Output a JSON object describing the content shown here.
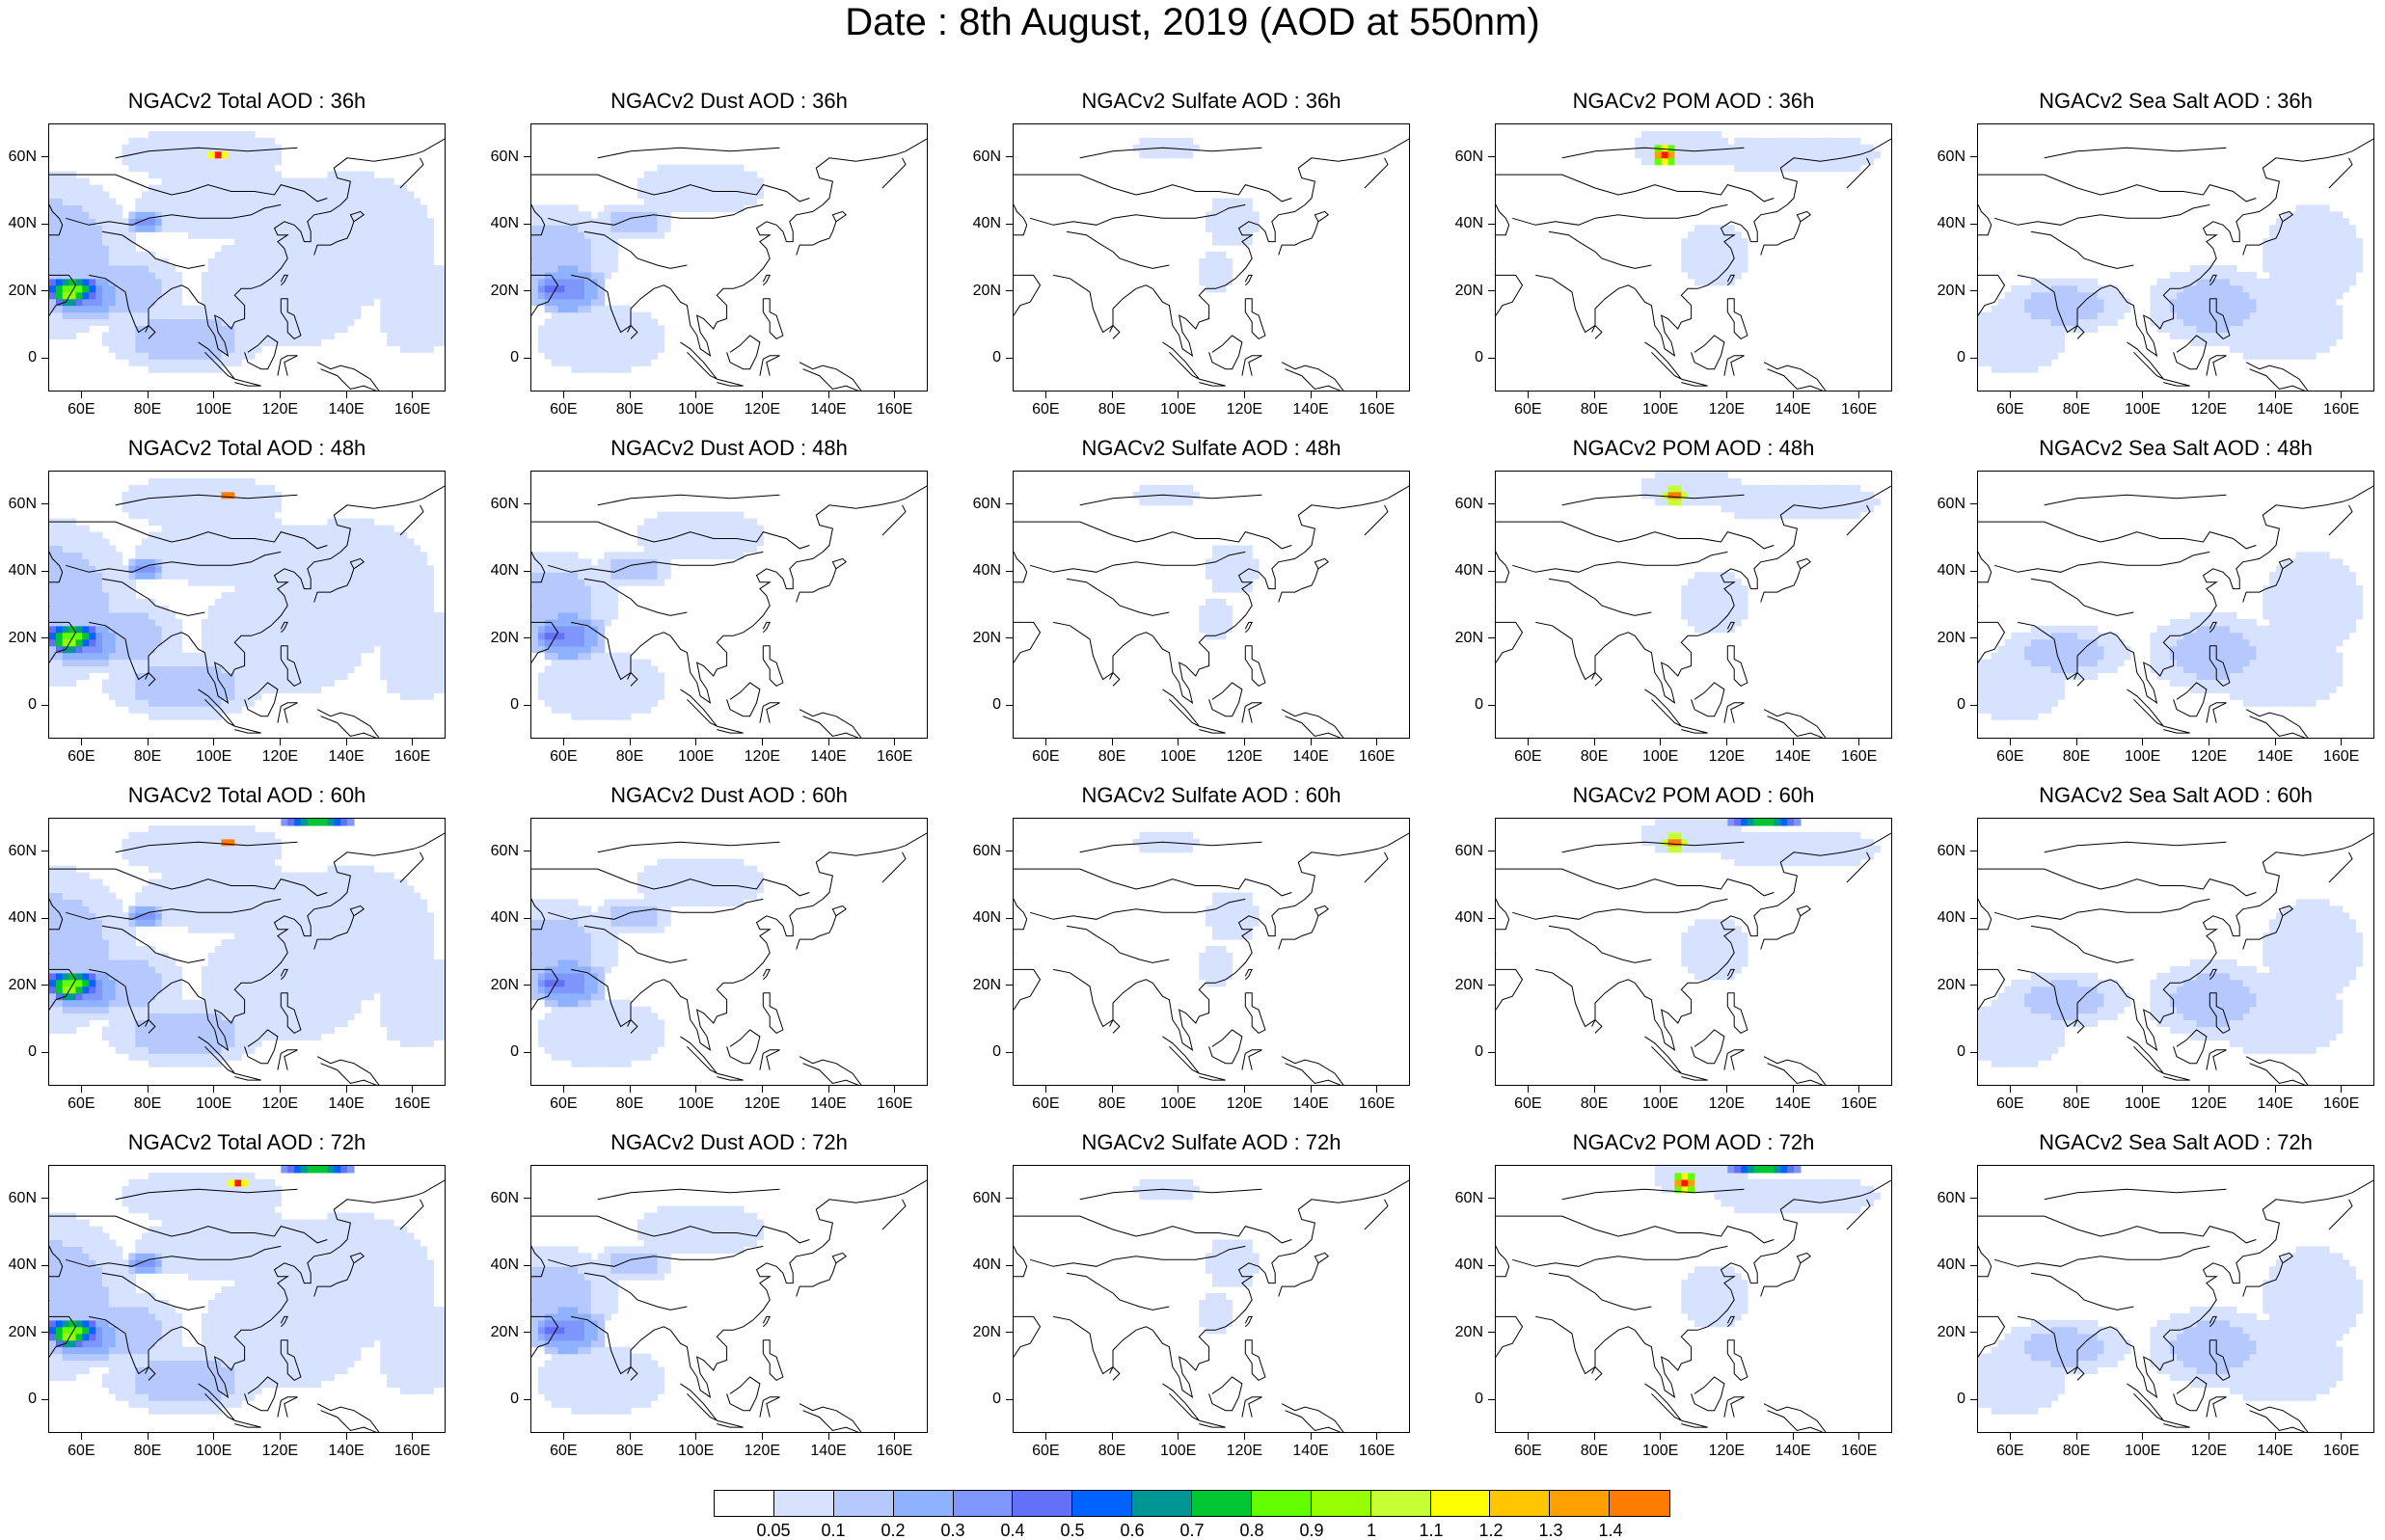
{
  "title": "Date : 8th August, 2019 (AOD at 550nm)",
  "panels": [
    {
      "id": "total-36",
      "title": "NGACv2 Total AOD : 36h",
      "species": "total",
      "hour": 36
    },
    {
      "id": "dust-36",
      "title": "NGACv2 Dust AOD : 36h",
      "species": "dust",
      "hour": 36
    },
    {
      "id": "sulfate-36",
      "title": "NGACv2 Sulfate AOD : 36h",
      "species": "sulfate",
      "hour": 36
    },
    {
      "id": "pom-36",
      "title": "NGACv2 POM AOD : 36h",
      "species": "pom",
      "hour": 36
    },
    {
      "id": "seasalt-36",
      "title": "NGACv2 Sea Salt AOD : 36h",
      "species": "seasalt",
      "hour": 36
    },
    {
      "id": "total-48",
      "title": "NGACv2 Total AOD : 48h",
      "species": "total",
      "hour": 48
    },
    {
      "id": "dust-48",
      "title": "NGACv2 Dust AOD : 48h",
      "species": "dust",
      "hour": 48
    },
    {
      "id": "sulfate-48",
      "title": "NGACv2 Sulfate AOD : 48h",
      "species": "sulfate",
      "hour": 48
    },
    {
      "id": "pom-48",
      "title": "NGACv2 POM AOD : 48h",
      "species": "pom",
      "hour": 48
    },
    {
      "id": "seasalt-48",
      "title": "NGACv2 Sea Salt AOD : 48h",
      "species": "seasalt",
      "hour": 48
    },
    {
      "id": "total-60",
      "title": "NGACv2 Total AOD : 60h",
      "species": "total",
      "hour": 60
    },
    {
      "id": "dust-60",
      "title": "NGACv2 Dust AOD : 60h",
      "species": "dust",
      "hour": 60
    },
    {
      "id": "sulfate-60",
      "title": "NGACv2 Sulfate AOD : 60h",
      "species": "sulfate",
      "hour": 60
    },
    {
      "id": "pom-60",
      "title": "NGACv2 POM AOD : 60h",
      "species": "pom",
      "hour": 60
    },
    {
      "id": "seasalt-60",
      "title": "NGACv2 Sea Salt AOD : 60h",
      "species": "seasalt",
      "hour": 60
    },
    {
      "id": "total-72",
      "title": "NGACv2 Total AOD : 72h",
      "species": "total",
      "hour": 72
    },
    {
      "id": "dust-72",
      "title": "NGACv2 Dust AOD : 72h",
      "species": "dust",
      "hour": 72
    },
    {
      "id": "sulfate-72",
      "title": "NGACv2 Sulfate AOD : 72h",
      "species": "sulfate",
      "hour": 72
    },
    {
      "id": "pom-72",
      "title": "NGACv2 POM AOD : 72h",
      "species": "pom",
      "hour": 72
    },
    {
      "id": "seasalt-72",
      "title": "NGACv2 Sea Salt  AOD : 72h",
      "species": "seasalt",
      "hour": 72
    }
  ],
  "map_extent": {
    "lon_min": 50,
    "lon_max": 170,
    "lat_min": -10,
    "lat_max": 70
  },
  "x_ticks": [
    {
      "value": 60,
      "label": "60E"
    },
    {
      "value": 80,
      "label": "80E"
    },
    {
      "value": 100,
      "label": "100E"
    },
    {
      "value": 120,
      "label": "120E"
    },
    {
      "value": 140,
      "label": "140E"
    },
    {
      "value": 160,
      "label": "160E"
    }
  ],
  "y_ticks": [
    {
      "value": 0,
      "label": "0"
    },
    {
      "value": 20,
      "label": "20N"
    },
    {
      "value": 40,
      "label": "40N"
    },
    {
      "value": 60,
      "label": "60N"
    }
  ],
  "colorbar": {
    "labels": [
      "0.05",
      "0.1",
      "0.2",
      "0.3",
      "0.4",
      "0.5",
      "0.6",
      "0.7",
      "0.8",
      "0.9",
      "1",
      "1.1",
      "1.2",
      "1.3",
      "1.4"
    ],
    "colors": [
      "#ffffff",
      "#d6e2ff",
      "#b5c9ff",
      "#8eb2ff",
      "#7f96ff",
      "#6370f8",
      "#0063ff",
      "#009696",
      "#00c633",
      "#63ff00",
      "#96ff00",
      "#c6ff33",
      "#ffff00",
      "#ffc600",
      "#ffa000",
      "#ff7c00",
      "#ff1900"
    ]
  }
}
